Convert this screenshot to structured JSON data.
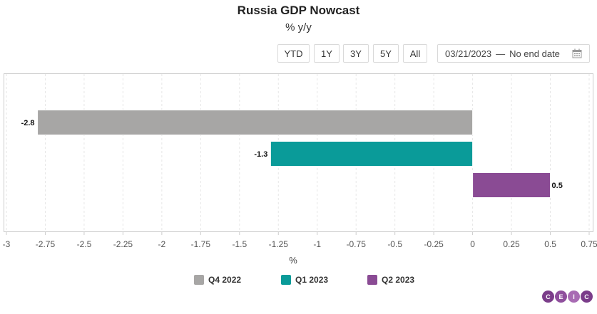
{
  "header": {
    "title": "Russia GDP Nowcast",
    "subtitle": "% y/y"
  },
  "range_buttons": [
    "YTD",
    "1Y",
    "3Y",
    "5Y",
    "All"
  ],
  "date_range": {
    "start": "03/21/2023",
    "separator": "—",
    "end": "No end date"
  },
  "chart_data": {
    "type": "bar",
    "orientation": "horizontal",
    "categories": [
      "Q4 2022",
      "Q1 2023",
      "Q2 2023"
    ],
    "values": [
      -2.8,
      -1.3,
      0.5
    ],
    "labels": [
      "-2.8",
      "-1.3",
      "0.5"
    ],
    "colors": [
      "#a7a6a5",
      "#0a9b99",
      "#8a4b94"
    ],
    "xlabel": "%",
    "xlim": [
      -3,
      0.75
    ],
    "xticks": [
      -3,
      -2.75,
      -2.5,
      -2.25,
      -2,
      -1.75,
      -1.5,
      -1.25,
      -1,
      -0.75,
      -0.5,
      -0.25,
      0,
      0.25,
      0.5,
      0.75
    ],
    "xtick_labels": [
      "-3",
      "-2.75",
      "-2.5",
      "-2.25",
      "-2",
      "-1.75",
      "-1.5",
      "-1.25",
      "-1",
      "-0.75",
      "-0.5",
      "-0.25",
      "0",
      "0.25",
      "0.5",
      "0.75"
    ],
    "grid": true,
    "legend": "bottom-center"
  },
  "logo": {
    "letters": [
      "C",
      "E",
      "I",
      "C"
    ],
    "colors": [
      "#7b3d8a",
      "#8f4f9d",
      "#a86bb3",
      "#7b3d8a"
    ]
  }
}
